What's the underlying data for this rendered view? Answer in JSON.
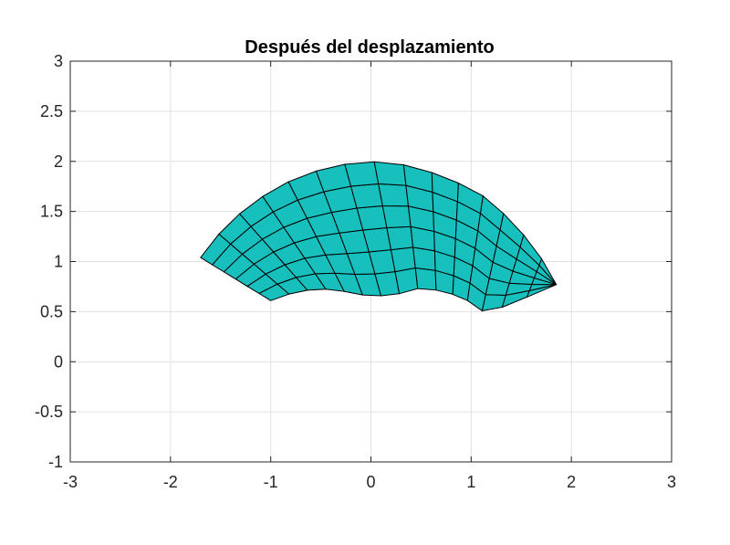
{
  "chart_data": {
    "type": "mesh",
    "title": "Después del desplazamiento",
    "xlabel": "",
    "ylabel": "",
    "xlim": [
      -3,
      3
    ],
    "ylim": [
      -1,
      3
    ],
    "xticks": [
      -3,
      -2,
      -1,
      0,
      1,
      2,
      3
    ],
    "yticks": [
      -1,
      -0.5,
      0,
      0.5,
      1,
      1.5,
      2,
      2.5,
      3
    ],
    "xtick_labels": [
      "-3",
      "-2",
      "-1",
      "0",
      "1",
      "2",
      "3"
    ],
    "ytick_labels": [
      "-1",
      "-0.5",
      "0",
      "0.5",
      "1",
      "1.5",
      "2",
      "2.5",
      "3"
    ],
    "grid": true,
    "mesh_columns": 15,
    "mesh_rows": 6,
    "outer_edge": [
      [
        -1.7,
        1.04
      ],
      [
        -1.45,
        1.36
      ],
      [
        -1.15,
        1.61
      ],
      [
        -0.8,
        1.81
      ],
      [
        -0.42,
        1.95
      ],
      [
        -0.02,
        2.0
      ],
      [
        0.38,
        1.96
      ],
      [
        0.76,
        1.84
      ],
      [
        1.1,
        1.67
      ],
      [
        1.38,
        1.43
      ],
      [
        1.65,
        1.12
      ],
      [
        1.85,
        0.77
      ]
    ],
    "inner_edge": [
      [
        -1.0,
        0.61
      ],
      [
        -0.75,
        0.7
      ],
      [
        -0.5,
        0.73
      ],
      [
        -0.25,
        0.7
      ],
      [
        0.0,
        0.65
      ],
      [
        0.25,
        0.67
      ],
      [
        0.5,
        0.74
      ],
      [
        0.75,
        0.7
      ],
      [
        0.95,
        0.62
      ],
      [
        1.15,
        0.48
      ],
      [
        1.45,
        0.6
      ],
      [
        1.85,
        0.77
      ]
    ],
    "face_color": "#17bfbd",
    "edge_color": "#000000",
    "grid_color": "#e1e1e1",
    "axis_color": "#262626"
  }
}
